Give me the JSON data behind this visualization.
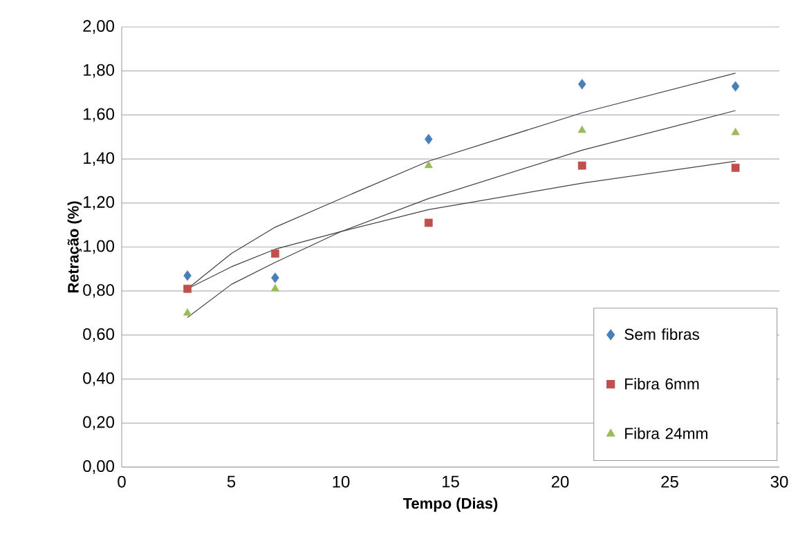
{
  "chart_data": {
    "type": "scatter",
    "xlabel": "Tempo (Dias)",
    "ylabel": "Retração (%)",
    "xlim": [
      0,
      30
    ],
    "xticks": [
      0,
      5,
      10,
      15,
      20,
      25,
      30
    ],
    "ylim": [
      0,
      2
    ],
    "yticks": [
      {
        "value": 0,
        "label": "0,00"
      },
      {
        "value": 0.2,
        "label": "0,20"
      },
      {
        "value": 0.4,
        "label": "0,40"
      },
      {
        "value": 0.6,
        "label": "0,60"
      },
      {
        "value": 0.8,
        "label": "0,80"
      },
      {
        "value": 1.0,
        "label": "1,00"
      },
      {
        "value": 1.2,
        "label": "1,20"
      },
      {
        "value": 1.4,
        "label": "1,40"
      },
      {
        "value": 1.6,
        "label": "1,60"
      },
      {
        "value": 1.8,
        "label": "1,80"
      },
      {
        "value": 2.0,
        "label": "2,00"
      }
    ],
    "grid": "y",
    "legend": "bottom right",
    "series": [
      {
        "name": "Sem fibras",
        "marker": "diamond",
        "color": "#4a7ebb",
        "x": [
          3,
          7,
          14,
          21,
          28
        ],
        "values": [
          0.87,
          0.86,
          1.49,
          1.74,
          1.73
        ]
      },
      {
        "name": "Fibra 6mm",
        "marker": "square",
        "color": "#c0504d",
        "x": [
          3,
          7,
          14,
          21,
          28
        ],
        "values": [
          0.81,
          0.97,
          1.11,
          1.37,
          1.36
        ]
      },
      {
        "name": "Fibra 24mm",
        "marker": "triangle",
        "color": "#9bbb59",
        "x": [
          3,
          7,
          14,
          21,
          28
        ],
        "values": [
          0.7,
          0.81,
          1.37,
          1.53,
          1.52
        ]
      },
      {
        "type": "line",
        "marker": "none",
        "line_style": "solid",
        "color": "#404040",
        "x": [
          3,
          5,
          7,
          10,
          14,
          21,
          28
        ],
        "values": [
          0.81,
          0.97,
          1.09,
          1.22,
          1.39,
          1.61,
          1.79
        ]
      },
      {
        "type": "line",
        "marker": "none",
        "line_style": "solid",
        "color": "#404040",
        "x": [
          3,
          5,
          7,
          10,
          14,
          21,
          28
        ],
        "values": [
          0.81,
          0.91,
          0.99,
          1.07,
          1.17,
          1.29,
          1.39
        ]
      },
      {
        "type": "line",
        "marker": "none",
        "line_style": "solid",
        "color": "#404040",
        "x": [
          3,
          5,
          7,
          10,
          14,
          21,
          28
        ],
        "values": [
          0.68,
          0.83,
          0.93,
          1.07,
          1.22,
          1.44,
          1.62
        ]
      }
    ]
  }
}
